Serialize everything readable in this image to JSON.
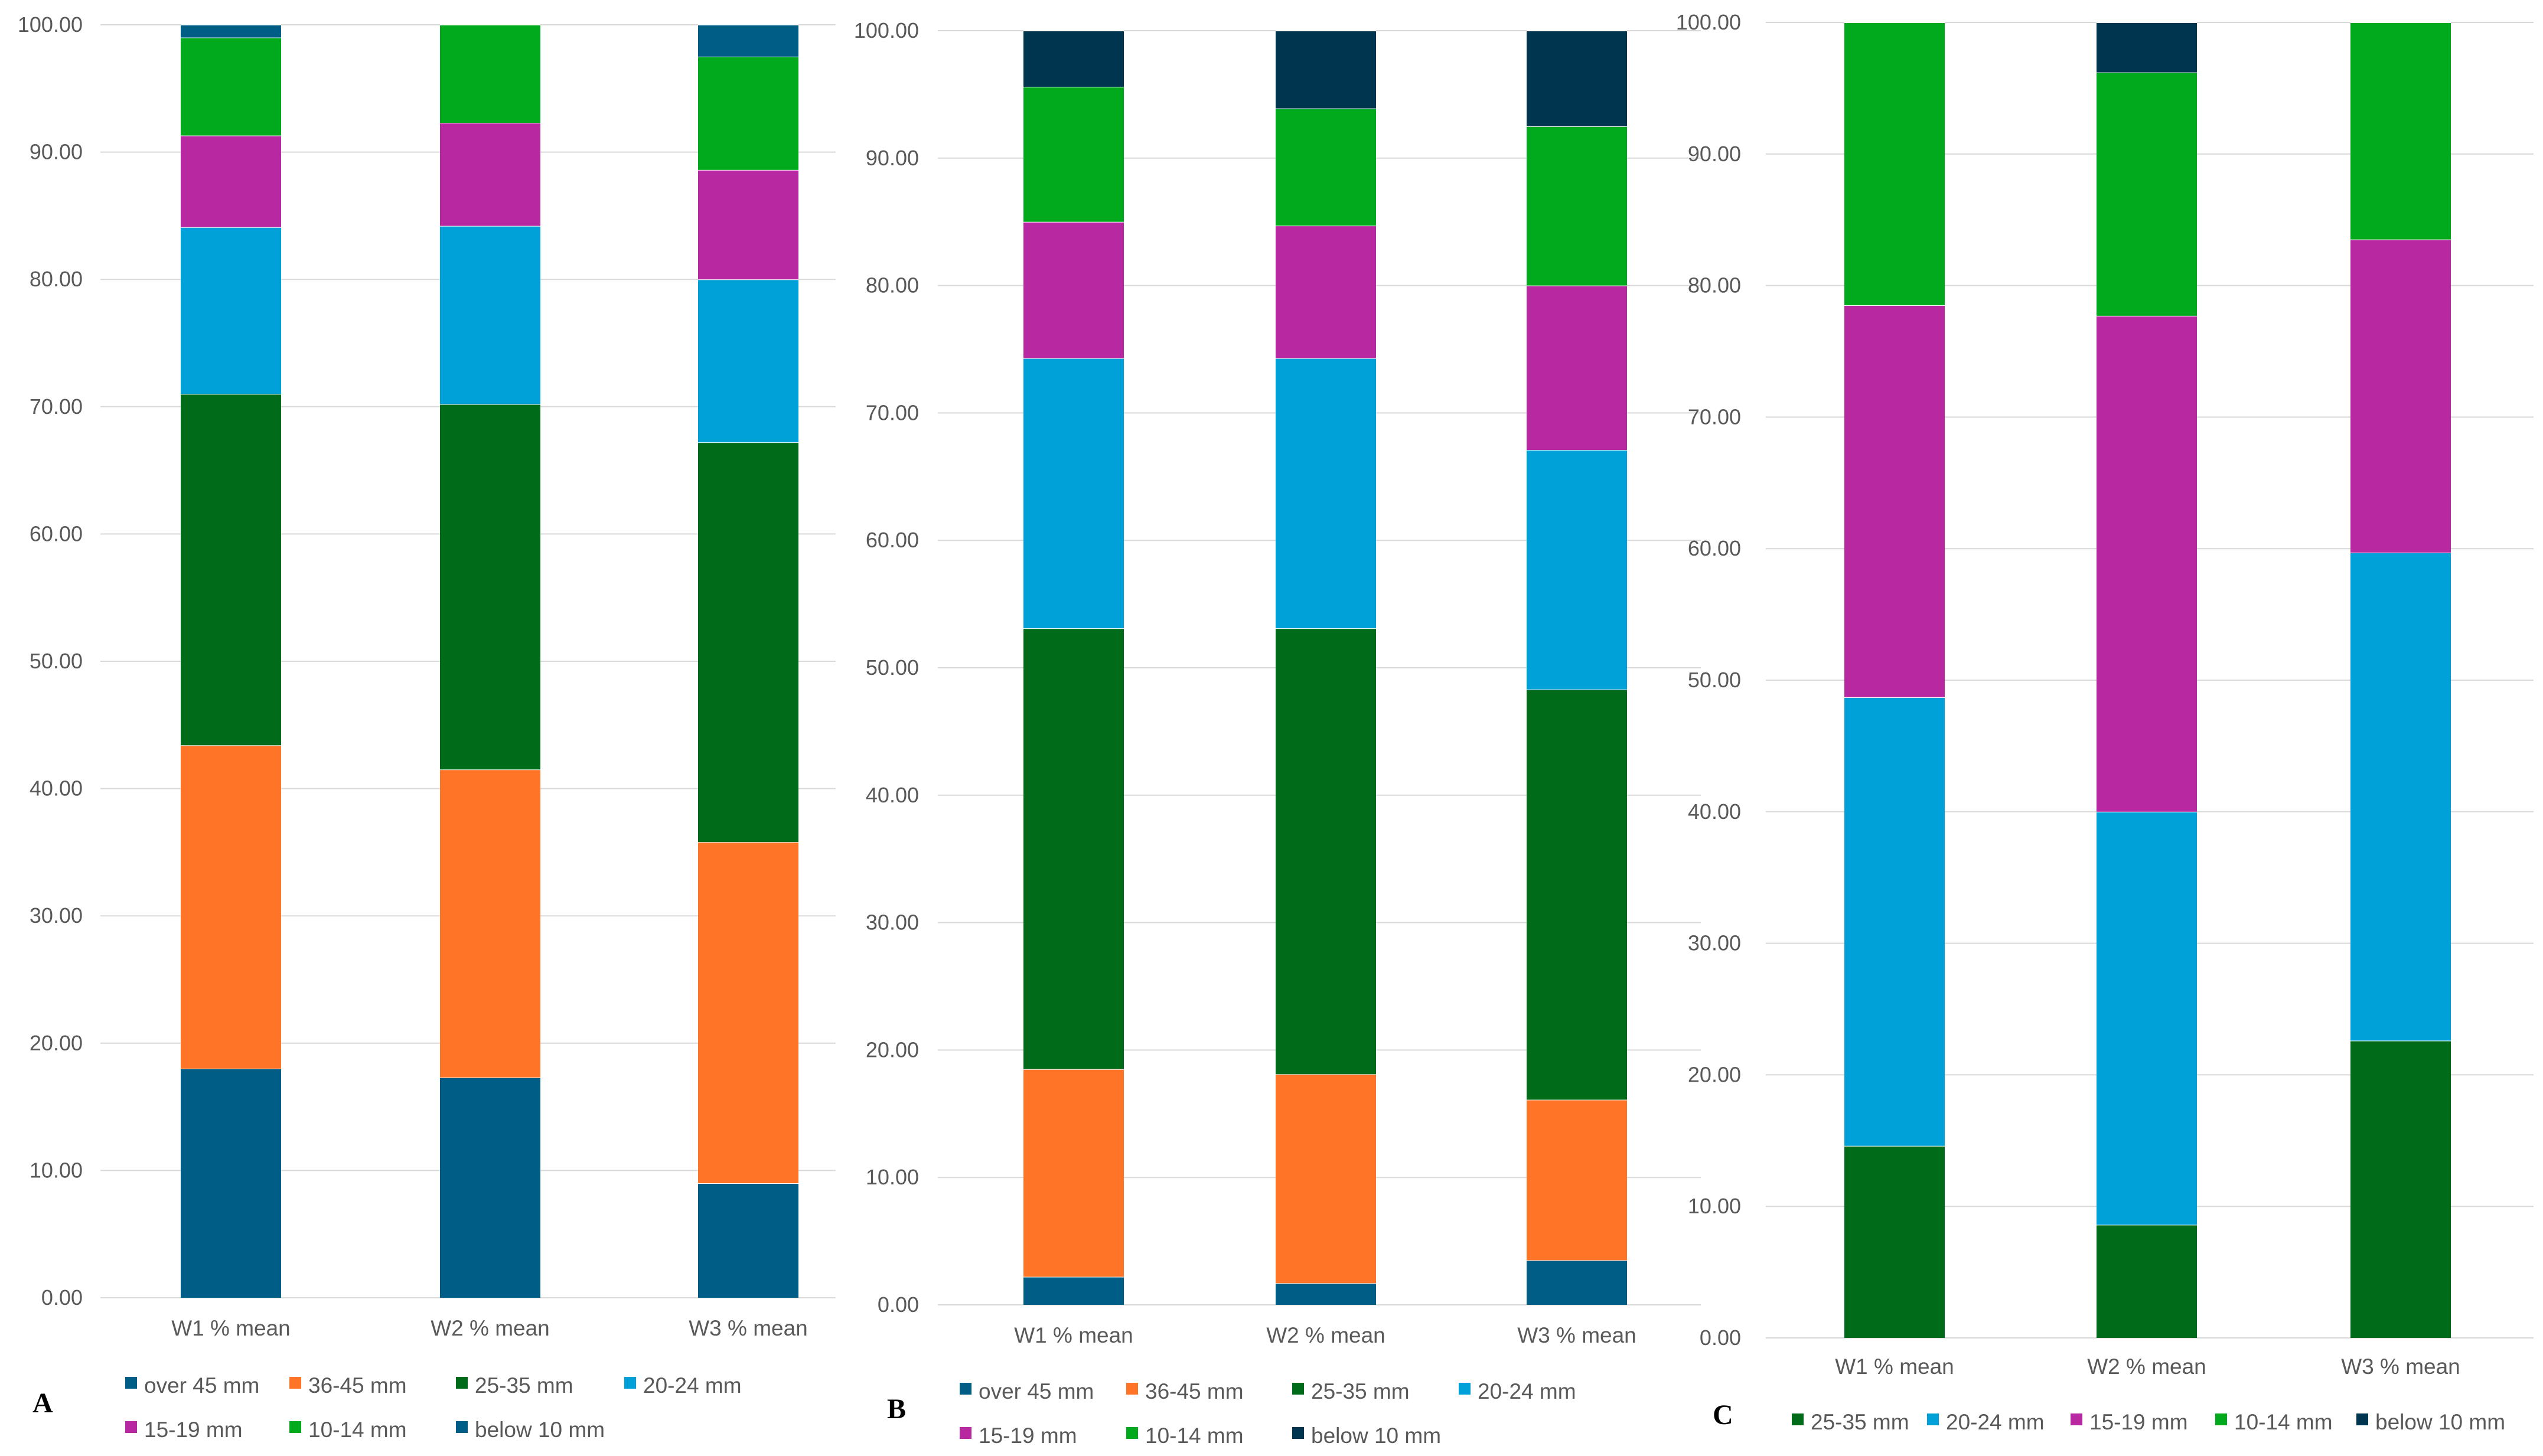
{
  "colors": {
    "over 45 mm": "#005E86",
    "36-45 mm": "#FF7426",
    "25-35 mm": "#006C1A",
    "20-24 mm": "#00A0D8",
    "15-19 mm": "#B828A0",
    "10-14 mm": "#00AA1C",
    "below 10 mm A": "#005E86",
    "below 10 mm B": "#00354F",
    "gridline": "#D9D9D9",
    "axis_text": "#595959"
  },
  "chart_data": [
    {
      "type": "bar",
      "stacked": true,
      "panel_label": "A",
      "categories": [
        "W1 % mean",
        "W2 % mean",
        "W3 % mean"
      ],
      "ylim": [
        0,
        100
      ],
      "yticks": [
        "0.00",
        "10.00",
        "20.00",
        "30.00",
        "40.00",
        "50.00",
        "60.00",
        "70.00",
        "80.00",
        "90.00",
        "100.00"
      ],
      "grid": true,
      "legend_position": "bottom",
      "series": [
        {
          "name": "over 45 mm",
          "color": "#005E86",
          "values": [
            18.0,
            17.3,
            9.0
          ]
        },
        {
          "name": "36-45 mm",
          "color": "#FF7426",
          "values": [
            25.4,
            24.2,
            26.8
          ]
        },
        {
          "name": "25-35 mm",
          "color": "#006C1A",
          "values": [
            27.6,
            28.7,
            31.4
          ]
        },
        {
          "name": "20-24 mm",
          "color": "#00A0D8",
          "values": [
            13.1,
            14.0,
            12.8
          ]
        },
        {
          "name": "15-19 mm",
          "color": "#B828A0",
          "values": [
            7.2,
            8.1,
            8.6
          ]
        },
        {
          "name": "10-14 mm",
          "color": "#00AA1C",
          "values": [
            7.7,
            7.7,
            8.9
          ]
        },
        {
          "name": "below 10 mm",
          "color": "#005E86",
          "values": [
            1.0,
            0.0,
            2.5
          ]
        }
      ]
    },
    {
      "type": "bar",
      "stacked": true,
      "panel_label": "B",
      "categories": [
        "W1 % mean",
        "W2 % mean",
        "W3 % mean"
      ],
      "ylim": [
        0,
        100
      ],
      "yticks": [
        "0.00",
        "10.00",
        "20.00",
        "30.00",
        "40.00",
        "50.00",
        "60.00",
        "70.00",
        "80.00",
        "90.00",
        "100.00"
      ],
      "grid": true,
      "legend_position": "bottom",
      "series": [
        {
          "name": "over 45 mm",
          "color": "#005E86",
          "values": [
            2.2,
            1.7,
            3.5
          ]
        },
        {
          "name": "36-45 mm",
          "color": "#FF7426",
          "values": [
            16.3,
            16.4,
            12.6
          ]
        },
        {
          "name": "25-35 mm",
          "color": "#006C1A",
          "values": [
            34.6,
            35.0,
            32.2
          ]
        },
        {
          "name": "20-24 mm",
          "color": "#00A0D8",
          "values": [
            21.2,
            21.2,
            18.8
          ]
        },
        {
          "name": "15-19 mm",
          "color": "#B828A0",
          "values": [
            10.7,
            10.4,
            12.9
          ]
        },
        {
          "name": "10-14 mm",
          "color": "#00AA1C",
          "values": [
            10.6,
            9.2,
            12.5
          ]
        },
        {
          "name": "below 10 mm",
          "color": "#00354F",
          "values": [
            4.4,
            6.1,
            7.5
          ]
        }
      ]
    },
    {
      "type": "bar",
      "stacked": true,
      "panel_label": "C",
      "categories": [
        "W1 % mean",
        "W2 % mean",
        "W3 % mean"
      ],
      "ylim": [
        0,
        100
      ],
      "yticks": [
        "0.00",
        "10.00",
        "20.00",
        "30.00",
        "40.00",
        "50.00",
        "60.00",
        "70.00",
        "80.00",
        "90.00",
        "100.00"
      ],
      "grid": true,
      "legend_position": "bottom",
      "series": [
        {
          "name": "25-35 mm",
          "color": "#006C1A",
          "values": [
            14.6,
            8.6,
            22.6
          ]
        },
        {
          "name": "20-24 mm",
          "color": "#00A0D8",
          "values": [
            34.1,
            31.4,
            37.1
          ]
        },
        {
          "name": "15-19 mm",
          "color": "#B828A0",
          "values": [
            29.8,
            37.7,
            23.8
          ]
        },
        {
          "name": "10-14 mm",
          "color": "#00AA1C",
          "values": [
            21.5,
            18.5,
            16.5
          ]
        },
        {
          "name": "below 10 mm",
          "color": "#00354F",
          "values": [
            0.0,
            3.8,
            0.0
          ]
        }
      ]
    }
  ]
}
